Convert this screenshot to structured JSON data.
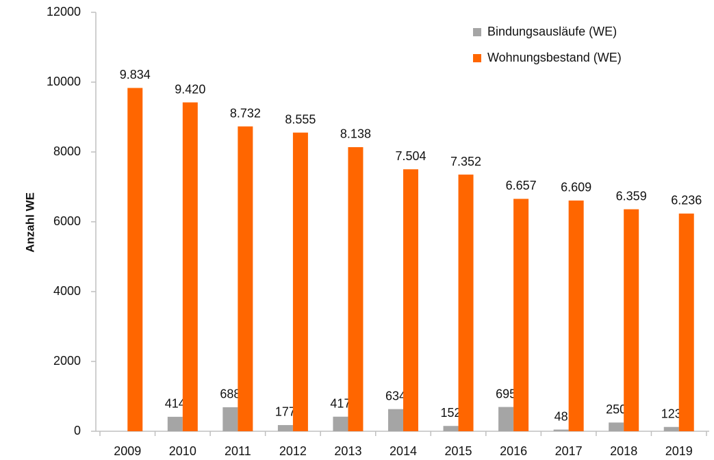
{
  "chart_data": {
    "type": "bar",
    "y_label": "Anzahl WE",
    "categories": [
      "2009",
      "2010",
      "2011",
      "2012",
      "2013",
      "2014",
      "2015",
      "2016",
      "2017",
      "2018",
      "2019"
    ],
    "series": [
      {
        "name": "Bindungsausläufe (WE)",
        "color": "#a5a5a5",
        "values": [
          null,
          414,
          688,
          177,
          417,
          634,
          152,
          695,
          48,
          250,
          123
        ]
      },
      {
        "name": "Wohnungsbestand (WE)",
        "color": "#ff6600",
        "values": [
          9834,
          9420,
          8732,
          8555,
          8138,
          7504,
          7352,
          6657,
          6609,
          6359,
          6236
        ],
        "value_labels": [
          "9.834",
          "9.420",
          "8.732",
          "8.555",
          "8.138",
          "7.504",
          "7.352",
          "6.657",
          "6.609",
          "6.359",
          "6.236"
        ]
      }
    ],
    "ylim": [
      0,
      12000
    ],
    "yticks": [
      0,
      2000,
      4000,
      6000,
      8000,
      10000,
      12000
    ],
    "grid": false,
    "legend": "top-right"
  }
}
